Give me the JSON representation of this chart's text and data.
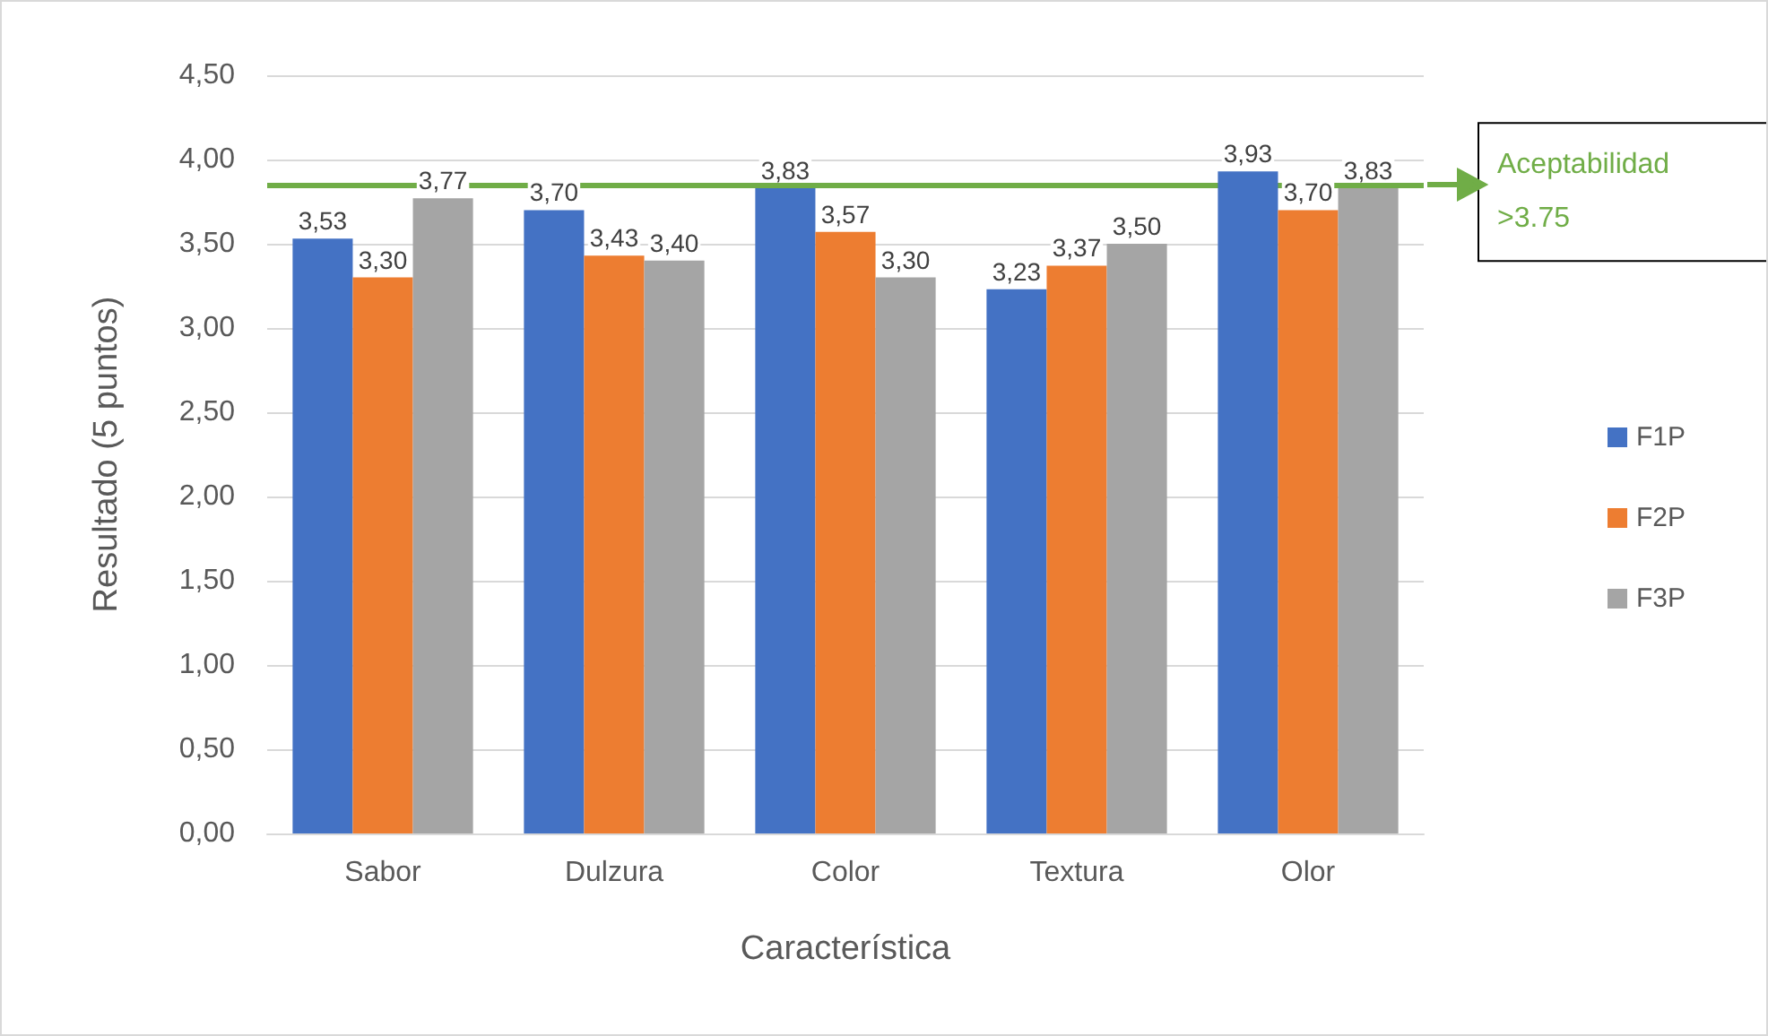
{
  "chart_data": {
    "type": "bar",
    "xlabel": "Característica",
    "ylabel": "Resultado (5 puntos)",
    "categories": [
      "Sabor",
      "Dulzura",
      "Color",
      "Textura",
      "Olor"
    ],
    "series": [
      {
        "name": "F1P",
        "color": "#4472c4",
        "values": [
          3.53,
          3.7,
          3.83,
          3.23,
          3.93
        ],
        "value_labels": [
          "3,53",
          "3,70",
          "3,83",
          "3,23",
          "3,93"
        ]
      },
      {
        "name": "F2P",
        "color": "#ed7d31",
        "values": [
          3.3,
          3.43,
          3.57,
          3.37,
          3.7
        ],
        "value_labels": [
          "3,30",
          "3,43",
          "3,57",
          "3,37",
          "3,70"
        ]
      },
      {
        "name": "F3P",
        "color": "#a5a5a5",
        "values": [
          3.77,
          3.4,
          3.3,
          3.5,
          3.83
        ],
        "value_labels": [
          "3,77",
          "3,40",
          "3,30",
          "3,50",
          "3,83"
        ]
      }
    ],
    "ylim": [
      0,
      4.5
    ],
    "yticks": [
      {
        "value": 0,
        "label": "0,00"
      },
      {
        "value": 0.5,
        "label": "0,50"
      },
      {
        "value": 1,
        "label": "1,00"
      },
      {
        "value": 1.5,
        "label": "1,50"
      },
      {
        "value": 2,
        "label": "2,00"
      },
      {
        "value": 2.5,
        "label": "2,50"
      },
      {
        "value": 3,
        "label": "3,00"
      },
      {
        "value": 3.5,
        "label": "3,50"
      },
      {
        "value": 4,
        "label": "4,00"
      },
      {
        "value": 4.5,
        "label": "4,50"
      }
    ],
    "grid": "y",
    "legend": "right",
    "ref_lines": [
      {
        "axis": "y",
        "value": 3.85,
        "label": "Aceptabilidad >3.75",
        "color": "#70ad47"
      }
    ]
  }
}
